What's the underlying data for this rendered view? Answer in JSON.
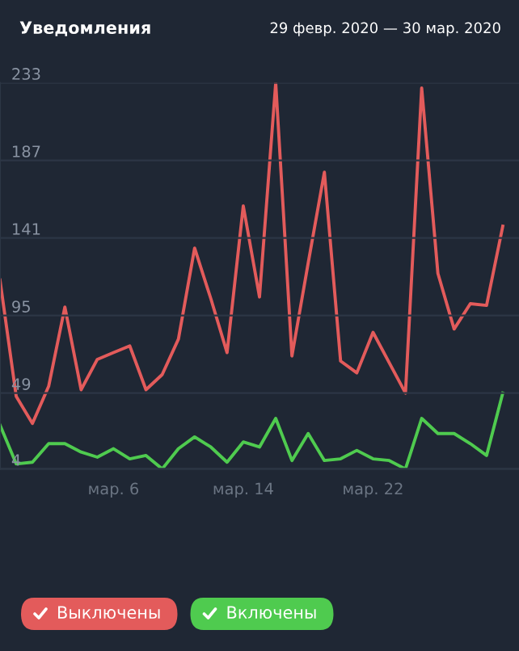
{
  "chart_data": {
    "type": "line",
    "title": "Уведомления",
    "subtitle": "29 февр. 2020 — 30 мар. 2020",
    "x": [
      "2020-02-28",
      "2020-02-29",
      "2020-03-01",
      "2020-03-02",
      "2020-03-03",
      "2020-03-04",
      "2020-03-05",
      "2020-03-06",
      "2020-03-07",
      "2020-03-08",
      "2020-03-09",
      "2020-03-10",
      "2020-03-11",
      "2020-03-12",
      "2020-03-13",
      "2020-03-14",
      "2020-03-15",
      "2020-03-16",
      "2020-03-17",
      "2020-03-18",
      "2020-03-19",
      "2020-03-20",
      "2020-03-21",
      "2020-03-22",
      "2020-03-23",
      "2020-03-24",
      "2020-03-25",
      "2020-03-26",
      "2020-03-27",
      "2020-03-28",
      "2020-03-29",
      "2020-03-30"
    ],
    "series": [
      {
        "name": "Выключены",
        "color": "#e35b5b",
        "values": [
          116,
          47,
          31,
          53,
          100,
          51,
          69,
          73,
          77,
          51,
          60,
          81,
          135,
          105,
          73,
          160,
          106,
          233,
          71,
          126,
          180,
          68,
          61,
          85,
          67,
          49,
          230,
          120,
          87,
          102,
          101,
          148
        ]
      },
      {
        "name": "Включены",
        "color": "#4fcb4f",
        "values": [
          30,
          7,
          8,
          19,
          19,
          14,
          11,
          16,
          10,
          12,
          4,
          16,
          23,
          17,
          8,
          20,
          17,
          34,
          9,
          25,
          9,
          10,
          15,
          10,
          9,
          4,
          34,
          25,
          25,
          19,
          12,
          49
        ]
      }
    ],
    "xlim": [
      "2020-02-28",
      "2020-03-31"
    ],
    "xticks": [
      {
        "value": "2020-03-06",
        "label": "мар. 6"
      },
      {
        "value": "2020-03-14",
        "label": "мар. 14"
      },
      {
        "value": "2020-03-22",
        "label": "мар. 22"
      }
    ],
    "ylim": [
      4,
      233
    ],
    "yticks": [
      4,
      49,
      95,
      141,
      187,
      233
    ],
    "grid": "y",
    "legend": "bottom",
    "marker": "none",
    "line_style": "solid"
  }
}
